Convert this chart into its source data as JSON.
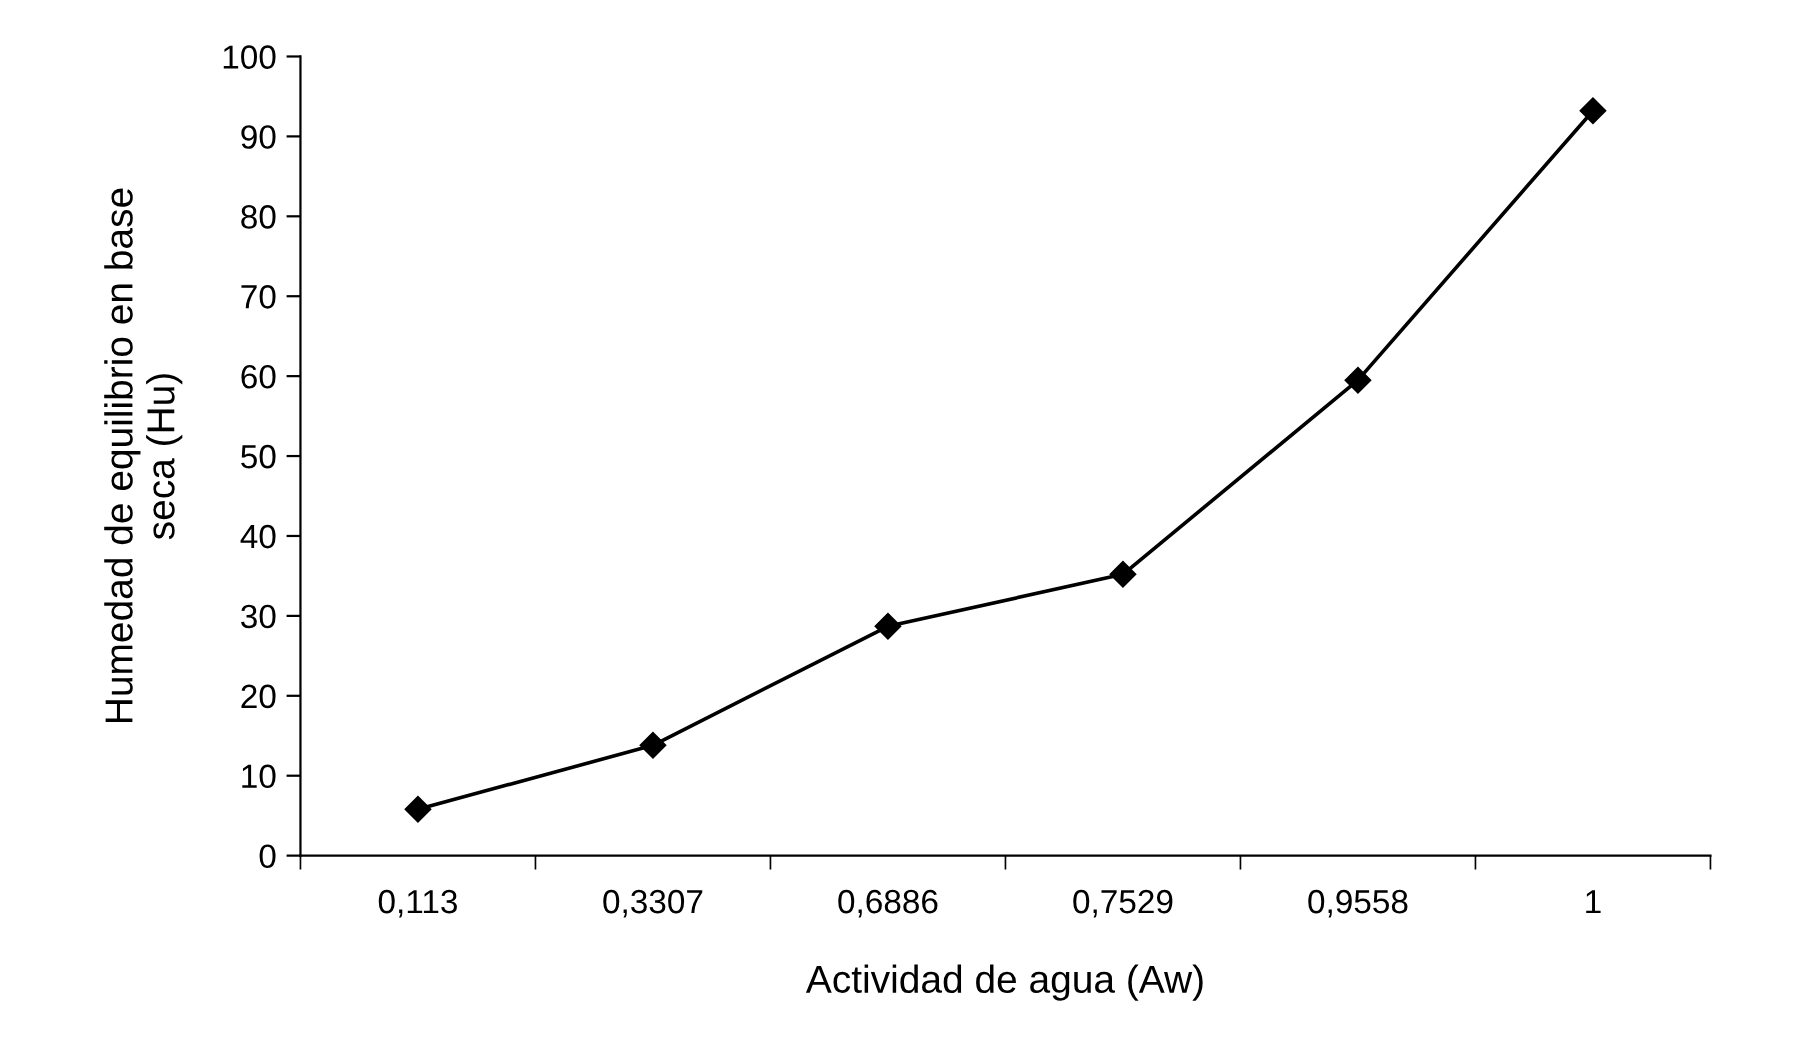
{
  "chart_data": {
    "type": "line",
    "xlabel": "Actividad de agua (Aw)",
    "ylabel": "Humedad de equilibrio en base\nseca (Hu)",
    "categories": [
      "0,113",
      "0,3307",
      "0,6886",
      "0,7529",
      "0,9558",
      "1"
    ],
    "series": [
      {
        "color": "#000000",
        "values": [
          5.8,
          13.8,
          28.7,
          35.2,
          59.5,
          93.2
        ]
      }
    ],
    "ylim": [
      0,
      100
    ],
    "yticks": [
      0,
      10,
      20,
      30,
      40,
      50,
      60,
      70,
      80,
      90,
      100
    ],
    "grid": false,
    "legend": false,
    "marker": "diamond",
    "line_style": "solid"
  }
}
